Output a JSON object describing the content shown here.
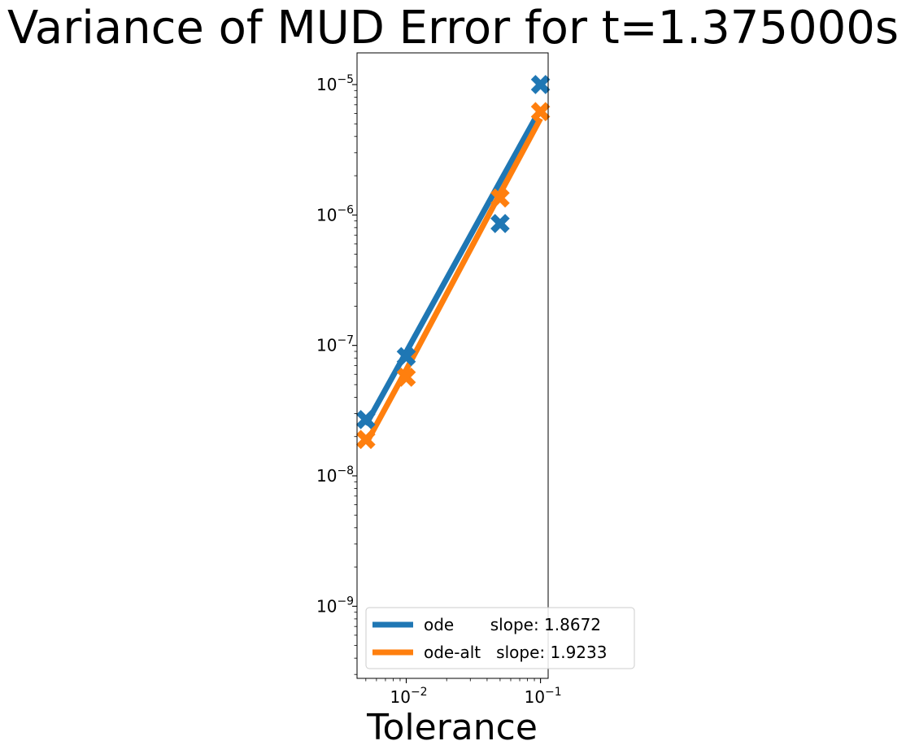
{
  "chart_data": {
    "type": "scatter",
    "title": "Variance of MUD Error for t=1.375000s",
    "xlabel": "Tolerance",
    "ylabel": "",
    "xscale": "log",
    "yscale": "log",
    "xlim": [
      0.0043,
      0.114
    ],
    "ylim": [
      2.8e-10,
      1.75e-05
    ],
    "x_ticks": [
      0.01,
      0.1
    ],
    "x_tick_labels": [
      "10^-2",
      "10^-1"
    ],
    "y_ticks": [
      1e-09,
      1e-08,
      1e-07,
      1e-06,
      1e-05
    ],
    "y_tick_labels": [
      "10^-9",
      "10^-8",
      "10^-7",
      "10^-6",
      "10^-5"
    ],
    "grid": false,
    "legend_position": "lower-right",
    "x": [
      0.005,
      0.01,
      0.05,
      0.1
    ],
    "series": [
      {
        "name": "ode",
        "color": "#1f77b4",
        "values": [
          2.7e-08,
          8.2e-08,
          8.6e-07,
          1e-05
        ],
        "fit": [
          2.45e-08,
          8.9e-08,
          1.8e-06,
          6.5e-06
        ],
        "legend_label": "ode       slope: 1.8672"
      },
      {
        "name": "ode-alt",
        "color": "#ff7f0e",
        "values": [
          1.9e-08,
          5.7e-08,
          1.35e-06,
          6.2e-06
        ],
        "fit": [
          1.75e-08,
          6.5e-08,
          1.46e-06,
          5.5e-06
        ],
        "legend_label": "ode-alt   slope: 1.9233"
      }
    ]
  }
}
